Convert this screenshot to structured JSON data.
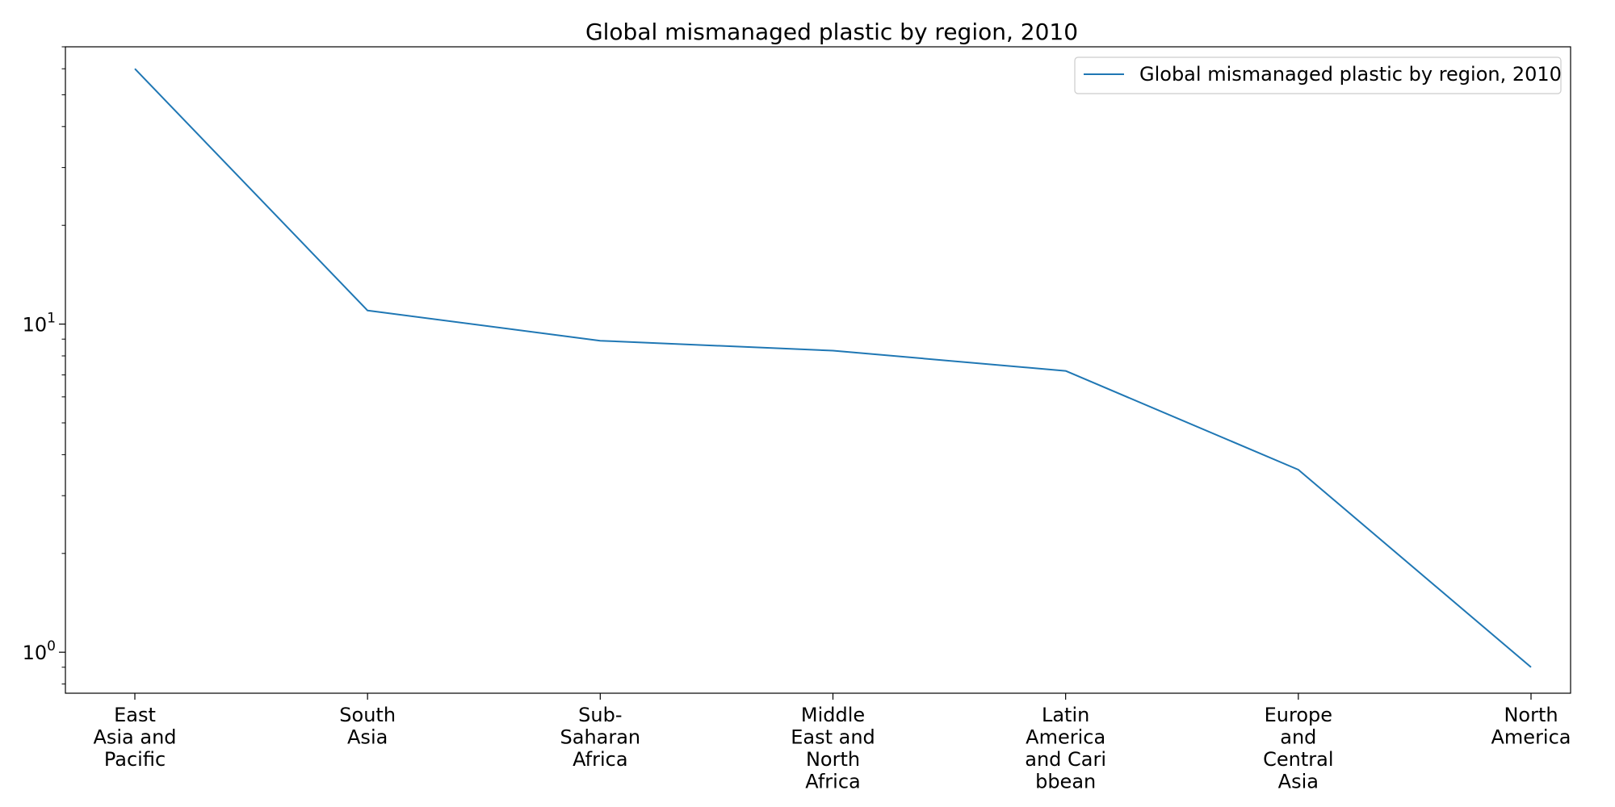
{
  "chart_data": {
    "type": "line",
    "title": "Global mismanaged plastic by region, 2010",
    "xlabel": "",
    "ylabel": "",
    "yscale": "log",
    "ylim": [
      0.75,
      70
    ],
    "grid": false,
    "legend_position": "top-right",
    "categories": [
      "East\nAsia and\nPacific",
      "South\nAsia",
      "Sub-\nSaharan\nAfrica",
      "Middle\nEast and\nNorth\nAfrica",
      "Latin\nAmerica\nand Cari\nbbean",
      "Europe\nand\nCentral\nAsia",
      "North\nAmerica"
    ],
    "y_ticks": [
      {
        "base": "10",
        "exp": "0",
        "value": 1
      },
      {
        "base": "10",
        "exp": "1",
        "value": 10
      }
    ],
    "series": [
      {
        "name": "Global mismanaged plastic by region, 2010",
        "color": "#1f77b4",
        "values": [
          60,
          11,
          8.9,
          8.3,
          7.2,
          3.6,
          0.9
        ]
      }
    ]
  }
}
